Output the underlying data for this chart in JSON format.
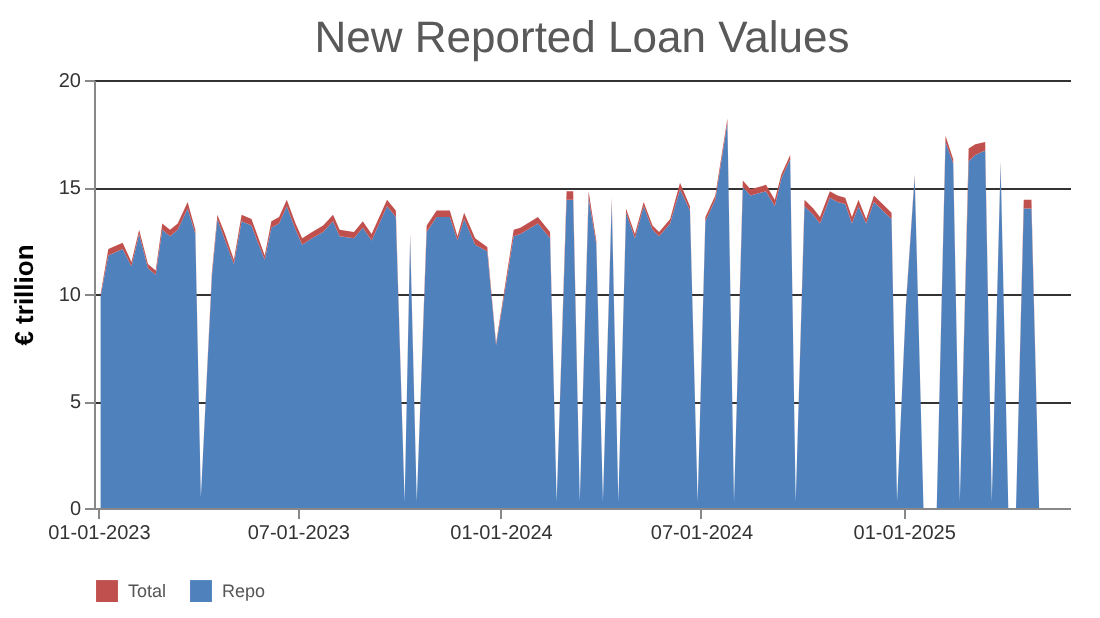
{
  "chart_data": {
    "type": "area",
    "title": "New Reported Loan Values",
    "ylabel": "€ trillion",
    "stacked": true,
    "legend": "bottom",
    "grid": "y",
    "x": [
      "2023-01-03",
      "2023-01-10",
      "2023-01-23",
      "2023-01-31",
      "2023-02-07",
      "2023-02-15",
      "2023-02-22",
      "2023-02-28",
      "2023-03-07",
      "2023-03-14",
      "2023-03-23",
      "2023-03-30",
      "2023-04-04",
      "2023-04-14",
      "2023-04-19",
      "2023-04-26",
      "2023-05-04",
      "2023-05-11",
      "2023-05-20",
      "2023-05-25",
      "2023-06-01",
      "2023-06-07",
      "2023-06-14",
      "2023-06-21",
      "2023-06-29",
      "2023-07-05",
      "2023-07-14",
      "2023-07-24",
      "2023-08-02",
      "2023-08-08",
      "2023-08-21",
      "2023-08-29",
      "2023-09-06",
      "2023-09-20",
      "2023-09-28",
      "2023-10-06",
      "2023-10-11",
      "2023-10-17",
      "2023-10-26",
      "2023-11-04",
      "2023-11-16",
      "2023-11-23",
      "2023-11-29",
      "2023-12-09",
      "2023-12-20",
      "2023-12-28",
      "2024-01-13",
      "2024-01-19",
      "2024-02-04",
      "2024-02-15",
      "2024-02-21",
      "2024-03-01",
      "2024-03-07",
      "2024-03-13",
      "2024-03-21",
      "2024-03-28",
      "2024-04-03",
      "2024-04-11",
      "2024-04-17",
      "2024-04-24",
      "2024-05-02",
      "2024-05-10",
      "2024-05-18",
      "2024-05-24",
      "2024-06-03",
      "2024-06-12",
      "2024-06-21",
      "2024-06-28",
      "2024-07-05",
      "2024-07-14",
      "2024-07-25",
      "2024-07-31",
      "2024-08-08",
      "2024-08-15",
      "2024-08-29",
      "2024-09-06",
      "2024-09-12",
      "2024-09-20",
      "2024-09-25",
      "2024-10-03",
      "2024-10-11",
      "2024-10-17",
      "2024-10-26",
      "2024-11-02",
      "2024-11-09",
      "2024-11-15",
      "2024-11-21",
      "2024-11-28",
      "2024-12-05",
      "2024-12-15",
      "2024-12-21",
      "2024-12-26",
      "2025-01-03",
      "2025-01-11",
      "2025-01-19",
      "2025-01-31",
      "2025-02-08",
      "2025-02-15",
      "2025-02-21",
      "2025-03-01",
      "2025-03-07",
      "2025-03-16",
      "2025-03-22",
      "2025-03-30",
      "2025-04-06",
      "2025-04-13",
      "2025-04-20",
      "2025-04-27",
      "2025-05-04",
      "2025-05-26"
    ],
    "series": [
      {
        "name": "Repo",
        "color": "#4f81bd",
        "values": [
          9.9,
          11.8,
          12.1,
          11.3,
          12.8,
          11.2,
          10.9,
          13.0,
          12.7,
          13.0,
          14.0,
          12.8,
          0.5,
          10.8,
          13.5,
          12.5,
          11.4,
          13.4,
          13.2,
          12.5,
          11.6,
          13.1,
          13.3,
          14.1,
          13.0,
          12.3,
          12.6,
          12.9,
          13.4,
          12.7,
          12.6,
          13.1,
          12.5,
          14.1,
          13.6,
          0.3,
          12.6,
          0.3,
          12.9,
          13.6,
          13.6,
          12.5,
          13.5,
          12.3,
          12.0,
          7.6,
          12.7,
          12.8,
          13.3,
          12.6,
          0.3,
          14.4,
          14.4,
          0.3,
          14.5,
          12.3,
          0.3,
          14.3,
          0.3,
          13.8,
          12.6,
          14.1,
          13.0,
          12.7,
          13.3,
          14.9,
          13.9,
          0.3,
          13.4,
          14.4,
          18.0,
          0.3,
          15.0,
          14.6,
          14.8,
          14.1,
          15.4,
          16.3,
          0.3,
          14.1,
          13.7,
          13.3,
          14.5,
          14.3,
          14.2,
          13.3,
          14.1,
          13.3,
          14.3,
          13.8,
          13.5,
          0.3,
          9.4,
          15.5,
          0,
          0,
          17.1,
          16.1,
          0.3,
          16.2,
          16.5,
          16.7,
          0.3,
          16.1,
          0,
          0,
          14.0,
          14.0,
          0,
          0
        ]
      },
      {
        "name": "Total",
        "color": "#c0504d",
        "values": [
          0.1,
          0.3,
          0.3,
          0.2,
          0.2,
          0.2,
          0.2,
          0.3,
          0.3,
          0.3,
          0.3,
          0.2,
          0,
          0.2,
          0.2,
          0.3,
          0.2,
          0.3,
          0.3,
          0.3,
          0.2,
          0.3,
          0.3,
          0.3,
          0.3,
          0.3,
          0.3,
          0.3,
          0.3,
          0.3,
          0.3,
          0.3,
          0.3,
          0.3,
          0.3,
          0,
          0.2,
          0,
          0.3,
          0.3,
          0.3,
          0.2,
          0.3,
          0.3,
          0.2,
          0.1,
          0.3,
          0.3,
          0.3,
          0.3,
          0,
          0.4,
          0.4,
          0,
          0.3,
          0.2,
          0,
          0.2,
          0,
          0.2,
          0.2,
          0.2,
          0.2,
          0.2,
          0.2,
          0.3,
          0.2,
          0,
          0.2,
          0.2,
          0.2,
          0,
          0.3,
          0.3,
          0.3,
          0.3,
          0.2,
          0.2,
          0,
          0.3,
          0.3,
          0.3,
          0.3,
          0.3,
          0.3,
          0.3,
          0.3,
          0.2,
          0.3,
          0.3,
          0.3,
          0,
          0.1,
          0.1,
          0,
          0,
          0.3,
          0.2,
          0,
          0.6,
          0.5,
          0.4,
          0,
          0.1,
          0,
          0,
          0.4,
          0.4,
          0,
          0
        ]
      }
    ],
    "xlim": [
      "2022-12-28",
      "2025-06-01"
    ],
    "xticks": [
      {
        "value": "2023-01-01",
        "label": "01-01-2023"
      },
      {
        "value": "2023-07-01",
        "label": "07-01-2023"
      },
      {
        "value": "2024-01-01",
        "label": "01-01-2024"
      },
      {
        "value": "2024-07-01",
        "label": "07-01-2024"
      },
      {
        "value": "2025-01-01",
        "label": "01-01-2025"
      }
    ],
    "ylim": [
      0,
      20
    ],
    "yticks": [
      0,
      5,
      10,
      15,
      20
    ]
  }
}
